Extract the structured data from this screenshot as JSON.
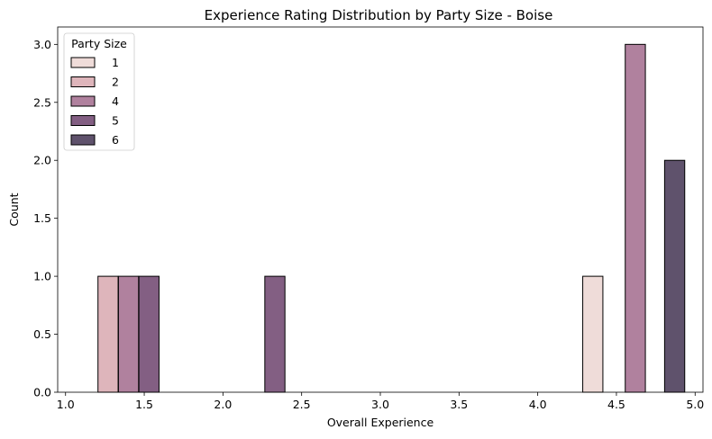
{
  "chart_data": {
    "type": "bar",
    "title": "Experience Rating Distribution by Party Size - Boise",
    "xlabel": "Overall Experience",
    "ylabel": "Count",
    "xlim": [
      0.95,
      5.05
    ],
    "ylim": [
      0,
      3.15
    ],
    "xticks": [
      1.0,
      1.5,
      2.0,
      2.5,
      3.0,
      3.5,
      4.0,
      4.5,
      5.0
    ],
    "xtick_labels": [
      "1.0",
      "1.5",
      "2.0",
      "2.5",
      "3.0",
      "3.5",
      "4.0",
      "4.5",
      "5.0"
    ],
    "yticks": [
      0,
      0.5,
      1.0,
      1.5,
      2.0,
      2.5,
      3.0
    ],
    "ytick_labels": [
      "0.0",
      "0.5",
      "1.0",
      "1.5",
      "2.0",
      "2.5",
      "3.0"
    ],
    "grid": false,
    "legend": {
      "title": "Party Size",
      "placement": "top-left"
    },
    "bin_width": 0.4,
    "series": [
      {
        "name": "1",
        "color": "#efdcd9",
        "bars": [
          {
            "x": 4.35,
            "count": 1
          }
        ]
      },
      {
        "name": "2",
        "color": "#deb5bb",
        "bars": [
          {
            "x": 1.27,
            "count": 1
          }
        ]
      },
      {
        "name": "4",
        "color": "#b0819e",
        "bars": [
          {
            "x": 1.4,
            "count": 1
          },
          {
            "x": 4.62,
            "count": 3
          }
        ]
      },
      {
        "name": "5",
        "color": "#835f83",
        "bars": [
          {
            "x": 1.53,
            "count": 1
          },
          {
            "x": 2.33,
            "count": 1
          }
        ]
      },
      {
        "name": "6",
        "color": "#5f526c",
        "bars": [
          {
            "x": 4.87,
            "count": 2
          }
        ]
      }
    ]
  }
}
